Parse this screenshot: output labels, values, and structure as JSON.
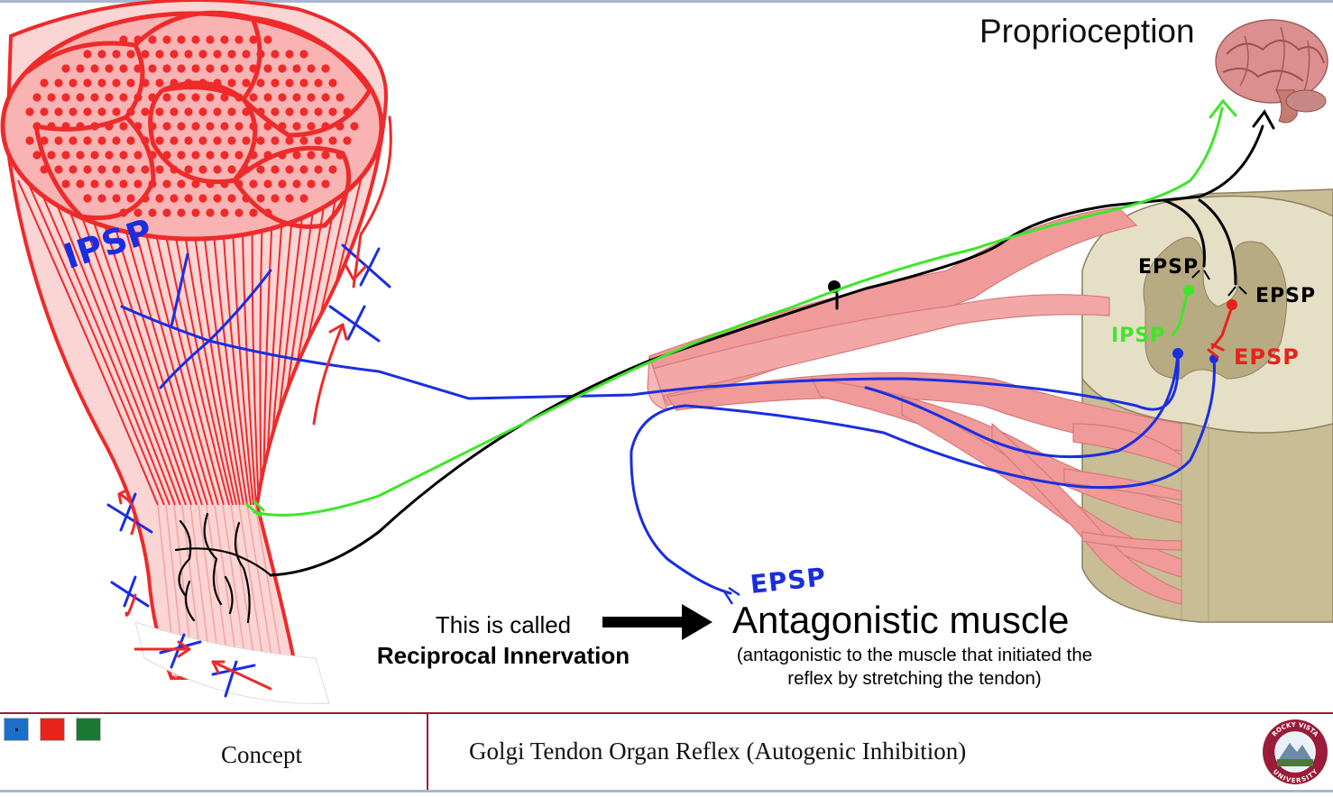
{
  "slide": {
    "title": "Proprioception",
    "called_line1": "This is called",
    "called_line2": "Reciprocal Innervation",
    "antagonistic_title": "Antagonistic muscle",
    "antagonistic_sub": "(antagonistic to the muscle that initiated the reflex by stretching the tendon)"
  },
  "annotations": {
    "ipsp_muscle": "IPSP",
    "epsp_black_left": "EPSP",
    "epsp_black_right": "EPSP",
    "ipsp_green": "IPSP",
    "epsp_red": "EPSP",
    "epsp_blue": "EPSP"
  },
  "footer": {
    "concept": "Concept",
    "topic": "Golgi Tendon Organ Reflex (Autogenic Inhibition)",
    "seal_top": "ROCKY VISTA",
    "seal_bottom": "UNIVERSITY"
  },
  "colors": {
    "muscle_red": "#ee2a2a",
    "muscle_pink": "#f9b3b3",
    "nerve_pink": "#f19a9a",
    "cord_tan": "#d8cfb2",
    "green_pen": "#3ee62a",
    "blue_pen": "#1a2ee0",
    "red_pen": "#e8221a",
    "black_pen": "#000000",
    "footer_maroon": "#9b1b3a",
    "square_blue": "#1b6fc9",
    "square_red": "#e8231c",
    "square_green": "#1a7a35"
  },
  "icons": [
    "brain-image",
    "arrow-right-icon",
    "university-seal"
  ]
}
